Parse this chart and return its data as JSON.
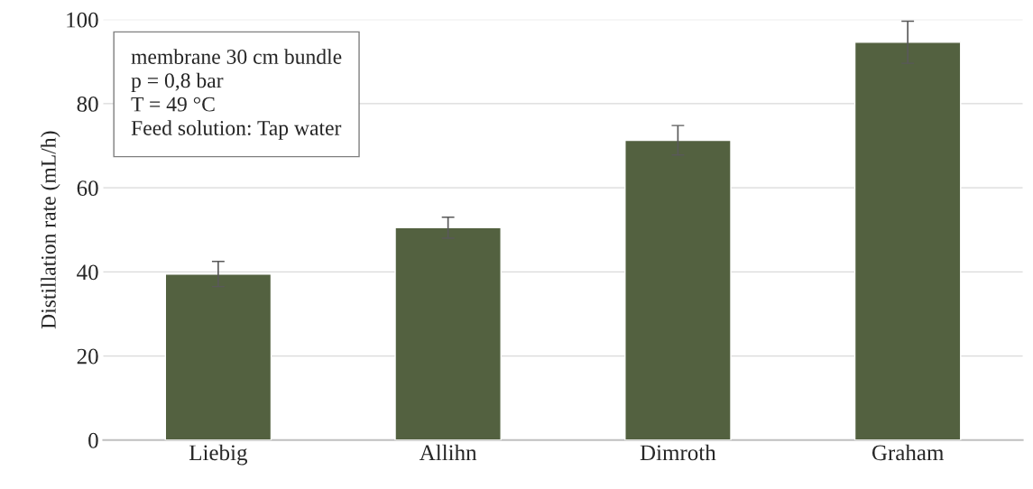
{
  "chart_data": {
    "type": "bar",
    "ylabel": "Distillation rate (mL/h)",
    "categories": [
      "Liebig",
      "Allihn",
      "Dimroth",
      "Graham"
    ],
    "values": [
      39.5,
      50.5,
      71.3,
      94.6
    ],
    "errors": [
      3,
      2.5,
      3.5,
      5
    ],
    "color": "#536140",
    "ylim": [
      0,
      100
    ],
    "yticks": [
      0,
      20,
      40,
      60,
      80,
      100
    ],
    "grid": "y",
    "annotations": [
      "membrane 30 cm bundle",
      "p = 0,8 bar",
      "T = 49 °C",
      "Feed solution: Tap water"
    ]
  }
}
